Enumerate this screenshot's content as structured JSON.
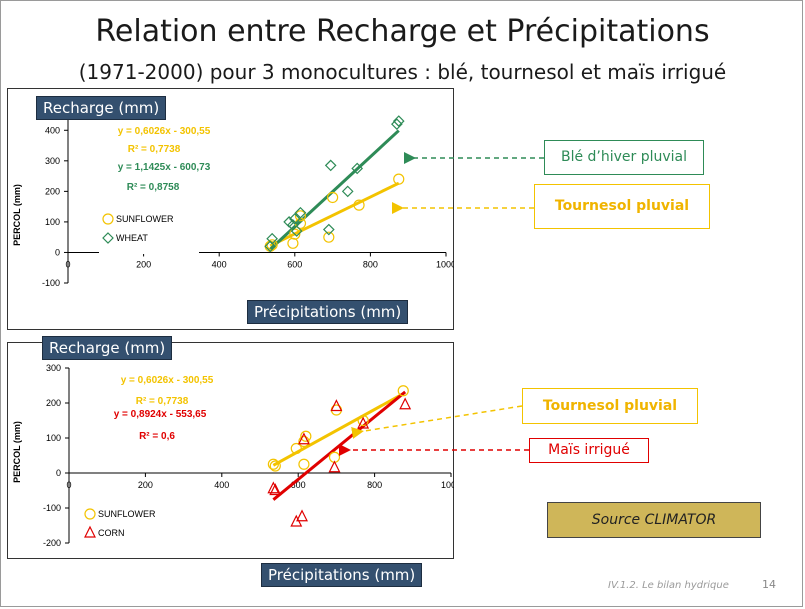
{
  "slide": {
    "title": "Relation entre Recharge et Précipitations",
    "subtitle": "(1971-2000) pour 3 monocultures : blé, tournesol et maïs irrigué",
    "footer": "IV.1.2. Le bilan hydrique",
    "page": "14",
    "source": "Source CLIMATOR"
  },
  "labels": {
    "recharge": "Recharge (mm)",
    "precip": "Précipitations (mm)"
  },
  "callouts": {
    "ble": "Blé d’hiver pluvial",
    "tournesol": "Tournesol pluvial",
    "mais": "Maïs irrigué"
  },
  "colors": {
    "sunflower": "#f3c300",
    "wheat": "#2e8b57",
    "corn": "#e00000",
    "navy": "#34506f",
    "source_fill": "#cfb659"
  },
  "chart_data": [
    {
      "type": "scatter",
      "ylabel": "PERCOL (mm)",
      "xlim": [
        0,
        1000
      ],
      "ylim": [
        -100,
        450
      ],
      "xticks": [
        0,
        200,
        400,
        600,
        800,
        1000
      ],
      "yticks": [
        -100,
        0,
        100,
        200,
        300,
        400
      ],
      "legend": "left-center",
      "series": [
        {
          "name": "SUNFLOWER",
          "marker": "circle",
          "color": "#f3c300",
          "points": [
            [
              535,
              20
            ],
            [
              540,
              25
            ],
            [
              595,
              30
            ],
            [
              600,
              60
            ],
            [
              615,
              120
            ],
            [
              615,
              95
            ],
            [
              690,
              50
            ],
            [
              700,
              180
            ],
            [
              770,
              155
            ],
            [
              875,
              240
            ]
          ],
          "equation": "y = 0,6026x - 300,55",
          "r2": "R² = 0,7738",
          "trend": [
            [
              535,
              21.8
            ],
            [
              875,
              226.7
            ]
          ]
        },
        {
          "name": "WHEAT",
          "marker": "diamond",
          "color": "#2e8b57",
          "points": [
            [
              535,
              20
            ],
            [
              540,
              45
            ],
            [
              585,
              100
            ],
            [
              595,
              90
            ],
            [
              600,
              110
            ],
            [
              605,
              70
            ],
            [
              615,
              130
            ],
            [
              690,
              75
            ],
            [
              695,
              285
            ],
            [
              740,
              200
            ],
            [
              765,
              275
            ],
            [
              870,
              420
            ],
            [
              875,
              430
            ]
          ],
          "equation": "y = 1,1425x - 600,73",
          "r2": "R² = 0,8758",
          "trend": [
            [
              535,
              10.5
            ],
            [
              875,
              399
            ]
          ]
        }
      ]
    },
    {
      "type": "scatter",
      "ylabel": "PERCOL (mm)",
      "xlim": [
        0,
        1000
      ],
      "ylim": [
        -200,
        300
      ],
      "xticks": [
        0,
        200,
        400,
        600,
        800,
        1000
      ],
      "yticks": [
        -200,
        -100,
        0,
        100,
        200,
        300
      ],
      "legend": "bottom-left",
      "series": [
        {
          "name": "SUNFLOWER",
          "marker": "circle",
          "color": "#f3c300",
          "points": [
            [
              535,
              25
            ],
            [
              540,
              20
            ],
            [
              595,
              70
            ],
            [
              615,
              25
            ],
            [
              615,
              90
            ],
            [
              620,
              105
            ],
            [
              695,
              45
            ],
            [
              700,
              180
            ],
            [
              770,
              150
            ],
            [
              875,
              235
            ]
          ],
          "equation": "y = 0,6026x - 300,55",
          "r2": "R² = 0,7738",
          "trend": [
            [
              535,
              21.8
            ],
            [
              875,
              226.7
            ]
          ]
        },
        {
          "name": "CORN",
          "marker": "triangle",
          "color": "#e00000",
          "points": [
            [
              535,
              -45
            ],
            [
              540,
              -50
            ],
            [
              595,
              -140
            ],
            [
              610,
              -125
            ],
            [
              615,
              95
            ],
            [
              695,
              15
            ],
            [
              700,
              190
            ],
            [
              770,
              140
            ],
            [
              880,
              195
            ]
          ],
          "equation": "y = 0,8924x - 553,65",
          "r2": "R² = 0,6",
          "trend": [
            [
              535,
              -76.2
            ],
            [
              880,
              231.7
            ]
          ]
        }
      ]
    }
  ]
}
